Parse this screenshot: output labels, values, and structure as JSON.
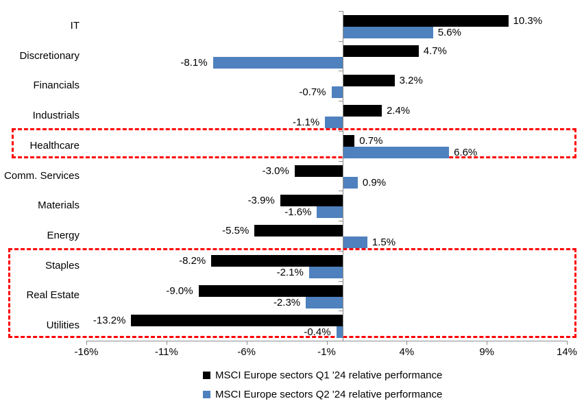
{
  "chart_data": {
    "type": "bar",
    "orientation": "horizontal",
    "title": "",
    "categories": [
      "IT",
      "Discretionary",
      "Financials",
      "Industrials",
      "Healthcare",
      "Comm. Services",
      "Materials",
      "Energy",
      "Staples",
      "Real Estate",
      "Utilities"
    ],
    "series": [
      {
        "name": "MSCI Europe sectors Q1 '24 relative performance",
        "color": "#000000",
        "values": [
          10.3,
          4.7,
          3.2,
          2.4,
          0.7,
          -3.0,
          -3.9,
          -5.5,
          -8.2,
          -9.0,
          -13.2
        ],
        "labels": [
          "10.3%",
          "4.7%",
          "3.2%",
          "2.4%",
          "0.7%",
          "-3.0%",
          "-3.9%",
          "-5.5%",
          "-8.2%",
          "-9.0%",
          "-13.2%"
        ]
      },
      {
        "name": "MSCI Europe sectors Q2 '24 relative performance",
        "color": "#4e81bd",
        "values": [
          5.6,
          -8.1,
          -0.7,
          -1.1,
          6.6,
          0.9,
          -1.6,
          1.5,
          -2.1,
          -2.3,
          -0.4
        ],
        "labels": [
          "5.6%",
          "-8.1%",
          "-0.7%",
          "-1.1%",
          "6.6%",
          "0.9%",
          "-1.6%",
          "1.5%",
          "-2.1%",
          "-2.3%",
          "-0.4%"
        ]
      }
    ],
    "xlim": [
      -16,
      14
    ],
    "x_ticks": [
      {
        "value": -16,
        "label": "-16%"
      },
      {
        "value": -11,
        "label": "-11%"
      },
      {
        "value": -6,
        "label": "-6%"
      },
      {
        "value": -1,
        "label": "-1%"
      },
      {
        "value": 4,
        "label": "4%"
      },
      {
        "value": 9,
        "label": "9%"
      },
      {
        "value": 14,
        "label": "14%"
      }
    ],
    "grid": false,
    "legend_position": "bottom-center",
    "axis_color": "#8c8c8c",
    "highlight_color": "#ff0000",
    "highlights": [
      {
        "categories": [
          "Healthcare"
        ]
      },
      {
        "categories": [
          "Staples",
          "Real Estate",
          "Utilities"
        ]
      }
    ]
  }
}
